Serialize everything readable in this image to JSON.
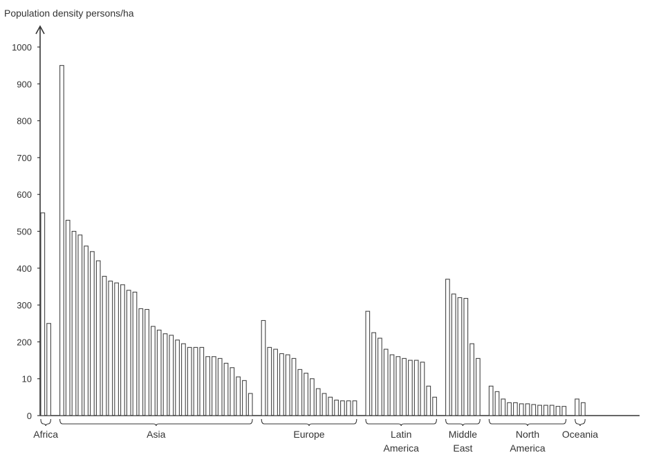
{
  "chart_data": {
    "type": "bar",
    "title": "",
    "ylabel": "Population density persons/ha",
    "xlabel": "",
    "ylim": [
      0,
      1000
    ],
    "y_ticks": [
      "0",
      "10",
      "200",
      "300",
      "400",
      "500",
      "600",
      "700",
      "800",
      "900",
      "1000"
    ],
    "grid": false,
    "bar_fill": "#ffffff",
    "bar_stroke": "#444444",
    "groups": [
      {
        "name": "Africa",
        "values": [
          550,
          250
        ]
      },
      {
        "name": "Asia",
        "values": [
          950,
          530,
          500,
          490,
          460,
          445,
          420,
          378,
          365,
          360,
          355,
          340,
          335,
          290,
          288,
          242,
          232,
          222,
          218,
          205,
          195,
          185,
          185,
          185,
          160,
          160,
          155,
          142,
          130,
          105,
          95,
          60
        ]
      },
      {
        "name": "Europe",
        "values": [
          258,
          185,
          180,
          168,
          165,
          155,
          125,
          115,
          100,
          73,
          60,
          50,
          42,
          40,
          40,
          40
        ]
      },
      {
        "name": "Latin\nAmerica",
        "values": [
          283,
          225,
          210,
          180,
          165,
          160,
          155,
          150,
          150,
          145,
          80,
          50
        ]
      },
      {
        "name": "Middle\nEast",
        "values": [
          370,
          330,
          320,
          318,
          195,
          155
        ]
      },
      {
        "name": "North\nAmerica",
        "values": [
          80,
          65,
          45,
          35,
          35,
          32,
          32,
          30,
          28,
          28,
          28,
          25,
          25
        ]
      },
      {
        "name": "Oceania",
        "values": [
          45,
          35
        ]
      }
    ]
  }
}
